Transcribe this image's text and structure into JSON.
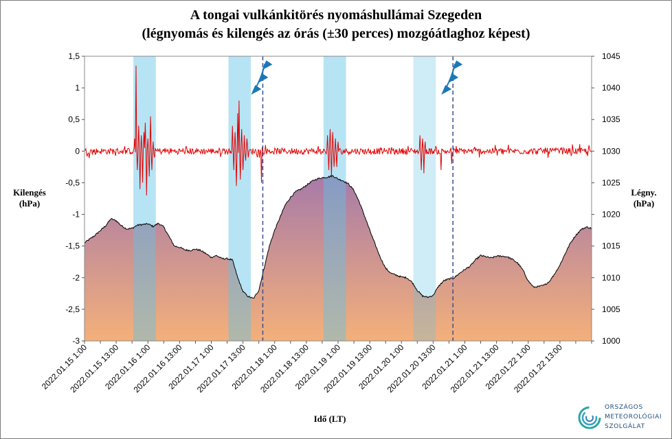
{
  "title": {
    "line1": "A tongai vulkánkitörés nyomáshullámai Szegeden",
    "line2": "(légnyomás és kilengés az órás (±30 perces) mozgóátlaghoz  képest)"
  },
  "axes": {
    "left_label_line1": "Kilengés",
    "left_label_line2": "(hPa)",
    "right_label_line1": "Légny.",
    "right_label_line2": "(hPa)",
    "x_label": "Idő (LT)"
  },
  "logo": {
    "line1": "ORSZÁGOS",
    "line2": "METEOROLÓGIAI",
    "line3": "SZOLGÁLAT"
  },
  "colors": {
    "deviation_line": "#e00000",
    "pressure_line": "#000000",
    "area_top": "#a77aa8",
    "area_bottom": "#f4b07a",
    "band": "#5fc4e6",
    "front_line": "#3a4f8c",
    "front_symbol": "#1a78b8"
  },
  "chart_data": {
    "type": "line",
    "title": "A tongai vulkánkitörés nyomáshullámai Szegeden (légnyomás és kilengés az órás (±30 perces) mozgóátlaghoz  képest)",
    "xlabel": "Idő (LT)",
    "ylabel_left": "Kilengés (hPa)",
    "ylabel_right": "Légny. (hPa)",
    "ylim_left": [
      -3,
      1.5
    ],
    "ylim_right": [
      1000,
      1045
    ],
    "y_left_ticks": [
      "-3",
      "-2,5",
      "-2",
      "-1,5",
      "-1",
      "-0,5",
      "0",
      "0,5",
      "1",
      "1,5"
    ],
    "y_right_ticks": [
      "1000",
      "1005",
      "1010",
      "1015",
      "1020",
      "1025",
      "1030",
      "1035",
      "1040",
      "1045"
    ],
    "x_range_hours": [
      0,
      192
    ],
    "x_tick_labels": [
      "2022.01.15 1:00",
      "2022.01.15 13:00",
      "2022.01.16 1:00",
      "2022.01.16 13:00",
      "2022.01.17 1:00",
      "2022.01.17 13:00",
      "2022.01.18 1:00",
      "2022.01.18 13:00",
      "2022.01.19 1:00",
      "2022.01.19 13:00",
      "2022.01.20 1:00",
      "2022.01.20 13:00",
      "2022.01.21 1:00",
      "2022.01.21 13:00",
      "2022.01.22 1:00",
      "2022.01.22 13:00"
    ],
    "grid": false,
    "legend": "none",
    "highlight_bands_hours": [
      [
        18.5,
        27
      ],
      [
        54.5,
        63
      ],
      [
        90.5,
        99
      ],
      [
        124.5,
        133
      ]
    ],
    "cold_front_times_hours": [
      67.5,
      139.5
    ],
    "series": [
      {
        "name": "Légnyomás",
        "axis": "right",
        "x_hours": [
          0,
          4,
          8,
          10,
          12,
          14,
          16,
          18,
          20,
          22,
          24,
          26,
          28,
          30,
          32,
          34,
          36,
          38,
          40,
          42,
          44,
          46,
          48,
          50,
          52,
          54,
          56,
          58,
          60,
          62,
          64,
          66,
          68,
          70,
          72,
          74,
          76,
          78,
          80,
          82,
          84,
          86,
          88,
          90,
          92,
          94,
          96,
          98,
          100,
          102,
          104,
          106,
          108,
          110,
          112,
          114,
          116,
          118,
          120,
          122,
          124,
          126,
          128,
          130,
          132,
          134,
          136,
          138,
          140,
          142,
          144,
          146,
          148,
          150,
          152,
          154,
          156,
          158,
          160,
          162,
          164,
          166,
          168,
          170,
          172,
          174,
          176,
          178,
          180,
          182,
          184,
          186,
          188,
          190,
          192
        ],
        "values": [
          1015.5,
          1016.7,
          1018.2,
          1019.3,
          1019.0,
          1018.2,
          1017.7,
          1017.8,
          1018.3,
          1018.4,
          1018.5,
          1018.1,
          1018.6,
          1018.0,
          1016.5,
          1015.0,
          1014.8,
          1014.4,
          1014.3,
          1014.5,
          1014.3,
          1013.8,
          1013.2,
          1013.5,
          1013.0,
          1013.0,
          1012.8,
          1010.0,
          1007.8,
          1007.0,
          1006.7,
          1008.0,
          1011.5,
          1015.0,
          1017.5,
          1019.5,
          1021.5,
          1022.7,
          1023.6,
          1024.0,
          1024.6,
          1025.2,
          1025.6,
          1025.8,
          1025.9,
          1026.1,
          1025.6,
          1025.3,
          1024.8,
          1023.8,
          1022.0,
          1019.8,
          1017.5,
          1015.3,
          1013.2,
          1011.5,
          1010.7,
          1010.4,
          1010.1,
          1010.0,
          1009.3,
          1008.0,
          1007.1,
          1006.9,
          1007.2,
          1008.6,
          1009.5,
          1009.8,
          1010.0,
          1010.7,
          1011.3,
          1011.8,
          1012.8,
          1013.5,
          1013.3,
          1013.1,
          1013.4,
          1013.4,
          1013.3,
          1012.9,
          1012.3,
          1011.2,
          1009.5,
          1008.5,
          1008.6,
          1008.8,
          1009.4,
          1010.6,
          1012.0,
          1013.8,
          1015.5,
          1016.7,
          1017.6,
          1018.0,
          1017.8
        ]
      },
      {
        "name": "Kilengés",
        "axis": "left",
        "baseline_hpa": 0,
        "typical_noise_hpa": 0.05,
        "x_hours": [
          19,
          19.5,
          20,
          20.5,
          21,
          21.5,
          22,
          22.5,
          23,
          23.5,
          24,
          24.5,
          25,
          25.5,
          26,
          26.5,
          56,
          56.5,
          57,
          57.5,
          58,
          58.5,
          59,
          59.5,
          60,
          60.5,
          61,
          61.5,
          62,
          67,
          92,
          92.5,
          93,
          93.5,
          94,
          94.5,
          95,
          95.5,
          96,
          127,
          127.5,
          128,
          128.5,
          129,
          135,
          139
        ],
        "values": [
          0.2,
          1.35,
          -0.3,
          0.4,
          -0.6,
          0.25,
          -0.5,
          0.3,
          0.45,
          -0.7,
          0.2,
          -0.4,
          0.55,
          -0.3,
          0.15,
          -0.1,
          0.4,
          -0.3,
          0.3,
          -0.55,
          0.6,
          0.8,
          -0.45,
          0.35,
          -0.3,
          0.25,
          -0.15,
          0.2,
          -0.1,
          -0.5,
          0.25,
          -0.3,
          0.35,
          -0.4,
          0.3,
          -0.25,
          0.2,
          -0.25,
          0.15,
          0.25,
          -0.3,
          0.2,
          -0.35,
          0.15,
          -0.3,
          -0.2
        ]
      }
    ]
  }
}
